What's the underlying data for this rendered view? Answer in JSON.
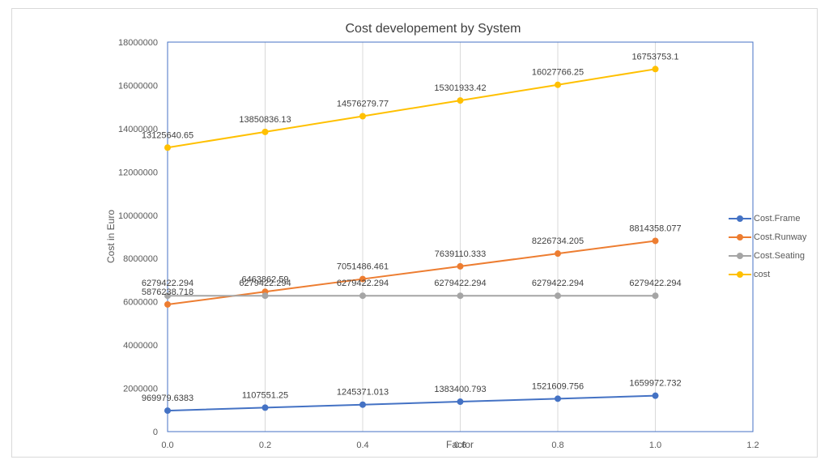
{
  "chart_data": {
    "type": "line",
    "title": "Cost developement  by System",
    "xlabel": "Factor",
    "ylabel": "Cost in Euro",
    "xlim": [
      0,
      1.2
    ],
    "ylim": [
      0,
      18000000
    ],
    "x_ticks": [
      "0.0",
      "0.2",
      "0.4",
      "0.6",
      "0.8",
      "1.0",
      "1.2"
    ],
    "y_ticks": [
      "0",
      "2000000",
      "4000000",
      "6000000",
      "8000000",
      "10000000",
      "12000000",
      "14000000",
      "16000000",
      "18000000"
    ],
    "grid": "vertical",
    "legend_position": "right",
    "x": [
      0,
      0.2,
      0.4,
      0.6,
      0.8,
      1.0
    ],
    "series": [
      {
        "name": "Cost.Frame",
        "color": "#4472c4",
        "values": [
          969979.6383,
          1107551.25,
          1245371.013,
          1383400.793,
          1521609.756,
          1659972.732
        ],
        "labels": [
          "969979.6383",
          "1107551.25",
          "1245371.013",
          "1383400.793",
          "1521609.756",
          "1659972.732"
        ]
      },
      {
        "name": "Cost.Runway",
        "color": "#ed7d31",
        "values": [
          5876238.718,
          6463862.59,
          7051486.461,
          7639110.333,
          8226734.205,
          8814358.077
        ],
        "labels": [
          "5876238.718",
          "6463862.59",
          "7051486.461",
          "7639110.333",
          "8226734.205",
          "8814358.077"
        ]
      },
      {
        "name": "Cost.Seating",
        "color": "#a5a5a5",
        "values": [
          6279422.294,
          6279422.294,
          6279422.294,
          6279422.294,
          6279422.294,
          6279422.294
        ],
        "labels": [
          "6279422.294",
          "6279422.294",
          "6279422.294",
          "6279422.294",
          "6279422.294",
          "6279422.294"
        ]
      },
      {
        "name": "cost",
        "color": "#ffc000",
        "values": [
          13125640.65,
          13850836.13,
          14576279.77,
          15301933.42,
          16027766.25,
          16753753.1
        ],
        "labels": [
          "13125640.65",
          "13850836.13",
          "14576279.77",
          "15301933.42",
          "16027766.25",
          "16753753.1"
        ]
      }
    ]
  }
}
